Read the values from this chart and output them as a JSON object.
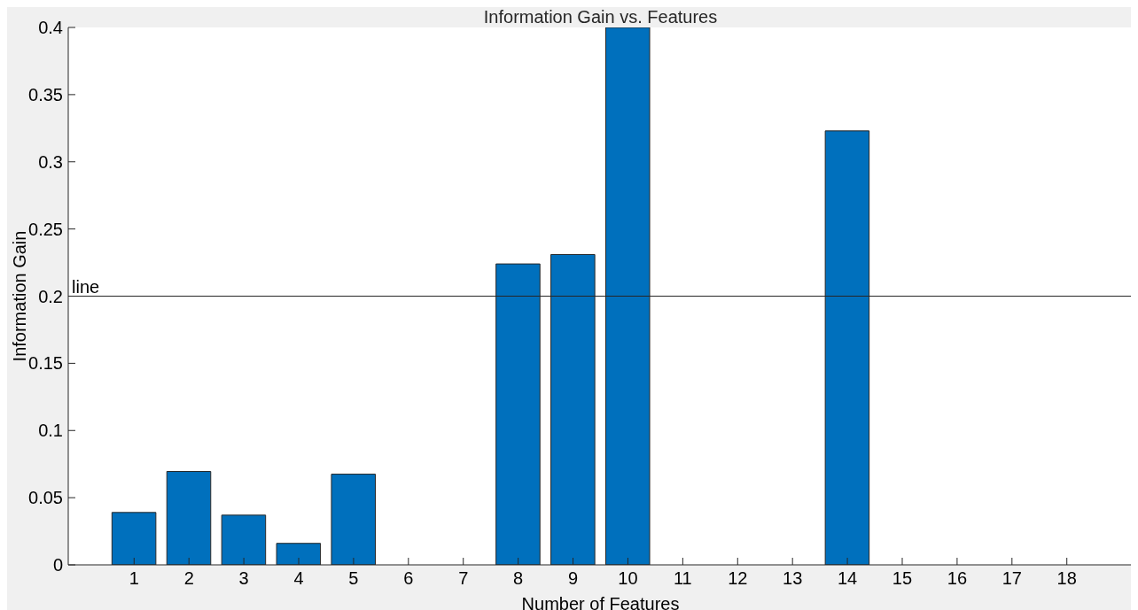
{
  "chart_data": {
    "type": "bar",
    "title": "Information Gain vs. Features",
    "xlabel": "Number of Features",
    "ylabel": "Information Gain",
    "x": [
      1,
      2,
      3,
      4,
      5,
      6,
      7,
      8,
      9,
      10,
      11,
      12,
      13,
      14,
      15,
      16,
      17,
      18
    ],
    "values": [
      0.039,
      0.0695,
      0.037,
      0.016,
      0.0675,
      0,
      0,
      0.224,
      0.231,
      0.4,
      0,
      0,
      0,
      0.323,
      0,
      0,
      0,
      0
    ],
    "color": "#0070bd",
    "xlim": [
      -0.2,
      19.2
    ],
    "xticks": [
      1,
      2,
      3,
      4,
      5,
      6,
      7,
      8,
      9,
      10,
      11,
      12,
      13,
      14,
      15,
      16,
      17,
      18
    ],
    "ylim": [
      0,
      0.4
    ],
    "yticks": [
      0,
      0.05,
      0.1,
      0.15,
      0.2,
      0.25,
      0.3,
      0.35,
      0.4
    ],
    "ref_lines": [
      {
        "axis": "y",
        "value": 0.2,
        "label": "line",
        "color": "#262626"
      }
    ],
    "grid": false,
    "legend": false
  }
}
